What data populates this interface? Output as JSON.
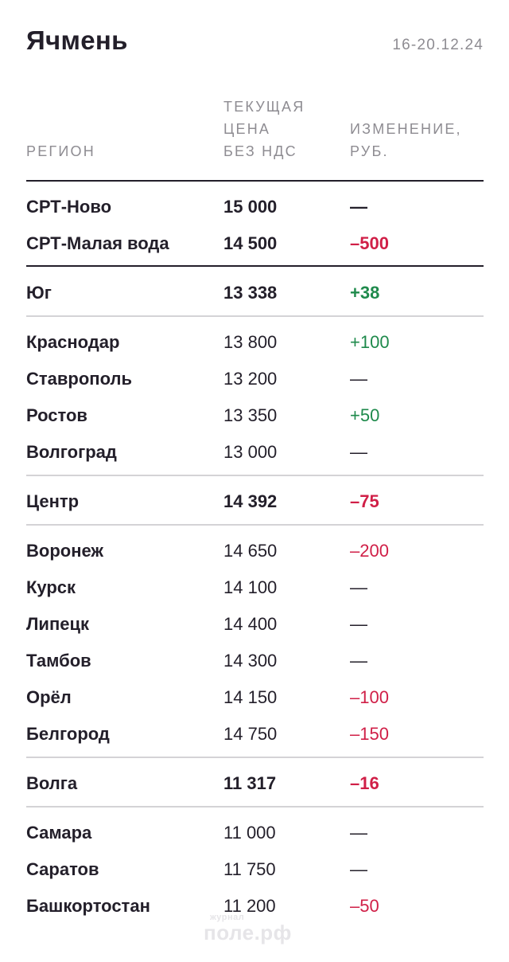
{
  "title": "Ячмень",
  "date": "16-20.12.24",
  "headers": {
    "region": "РЕГИОН",
    "price": "ТЕКУЩАЯ\nЦЕНА\nБЕЗ НДС",
    "change": "ИЗМЕНЕНИЕ,\nРУБ."
  },
  "rows": [
    {
      "region": "СРТ-Ново",
      "price": "15 000",
      "change": "—"
    },
    {
      "region": "СРТ-Малая вода",
      "price": "14 500",
      "change": "–500"
    },
    {
      "region": "Юг",
      "price": "13 338",
      "change": "+38"
    },
    {
      "region": "Краснодар",
      "price": "13 800",
      "change": "+100"
    },
    {
      "region": "Ставрополь",
      "price": "13 200",
      "change": "—"
    },
    {
      "region": "Ростов",
      "price": "13 350",
      "change": "+50"
    },
    {
      "region": "Волгоград",
      "price": "13 000",
      "change": "—"
    },
    {
      "region": "Центр",
      "price": "14 392",
      "change": "–75"
    },
    {
      "region": "Воронеж",
      "price": "14 650",
      "change": "–200"
    },
    {
      "region": "Курск",
      "price": "14 100",
      "change": "—"
    },
    {
      "region": "Липецк",
      "price": "14 400",
      "change": "—"
    },
    {
      "region": "Тамбов",
      "price": "14 300",
      "change": "—"
    },
    {
      "region": "Орёл",
      "price": "14 150",
      "change": "–100"
    },
    {
      "region": "Белгород",
      "price": "14 750",
      "change": "–150"
    },
    {
      "region": "Волга",
      "price": "11 317",
      "change": "–16"
    },
    {
      "region": "Самара",
      "price": "11 000",
      "change": "—"
    },
    {
      "region": "Саратов",
      "price": "11 750",
      "change": "—"
    },
    {
      "region": "Башкортостан",
      "price": "11 200",
      "change": "–50"
    }
  ],
  "watermark": {
    "small": "журнал",
    "big": "поле.рф"
  },
  "colors": {
    "negative": "#d01f47",
    "positive": "#1f8a4c",
    "text": "#231f2a",
    "muted": "#8e8c92"
  }
}
